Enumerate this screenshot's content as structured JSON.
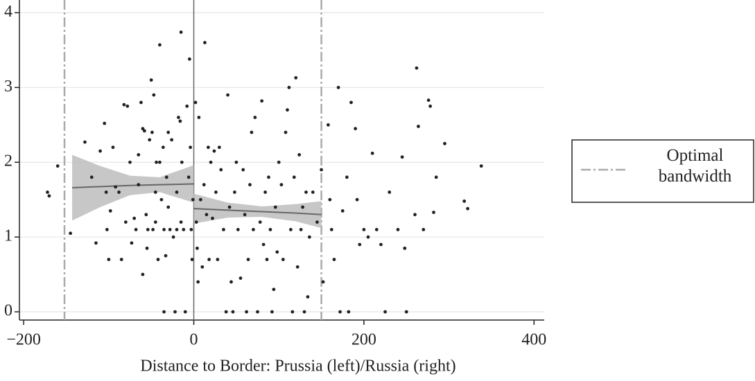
{
  "chart_data": {
    "type": "scatter",
    "x_label": "Distance to Border: Prussia (left)/Russia (right)",
    "xlim": [
      -205,
      412
    ],
    "ylim": [
      -0.11,
      4.17
    ],
    "xticks": [
      {
        "value": -200,
        "label": "−200"
      },
      0,
      200,
      400
    ],
    "yticks": [
      0,
      1,
      2,
      3,
      4
    ],
    "grid": true,
    "color": "#222222",
    "threshold": 0,
    "x": [
      -172,
      -170,
      -160,
      -145,
      -128,
      -120,
      -115,
      -110,
      -105,
      -103,
      -102,
      -100,
      -98,
      -95,
      -92,
      -85,
      -82,
      -78,
      -75,
      -73,
      -70,
      -68,
      -65,
      -62,
      -60,
      -58,
      -56,
      -55,
      -54,
      -52,
      -50,
      -49,
      -47,
      -45,
      -44,
      -42,
      -40,
      -38,
      -36,
      -35,
      -33,
      -32,
      -30,
      -28,
      -26,
      -24,
      -22,
      -20,
      -18,
      -16,
      -15,
      -14,
      -12,
      -10,
      -8,
      -6,
      -5,
      -4,
      -3,
      -2,
      -1,
      -60,
      -80,
      -88,
      -65,
      -45,
      -30,
      -20,
      -35,
      -48,
      -15,
      -40,
      2,
      3,
      4,
      5,
      6,
      8,
      10,
      12,
      13,
      15,
      17,
      18,
      20,
      22,
      24,
      26,
      28,
      30,
      32,
      35,
      38,
      40,
      42,
      44,
      46,
      48,
      50,
      52,
      55,
      58,
      60,
      62,
      64,
      66,
      68,
      70,
      72,
      75,
      78,
      80,
      82,
      84,
      86,
      88,
      90,
      92,
      94,
      96,
      98,
      100,
      103,
      105,
      108,
      110,
      112,
      114,
      116,
      118,
      120,
      122,
      124,
      126,
      128,
      130,
      132,
      134,
      136,
      140,
      145,
      150,
      152,
      158,
      160,
      162,
      165,
      170,
      172,
      175,
      180,
      182,
      185,
      190,
      192,
      195,
      200,
      205,
      210,
      215,
      220,
      225,
      230,
      240,
      245,
      248,
      250,
      260,
      262,
      264,
      270,
      276,
      278,
      282,
      285,
      295,
      318,
      322,
      338
    ],
    "values": [
      1.6,
      1.55,
      1.95,
      1.05,
      2.27,
      1.8,
      0.92,
      2.15,
      2.52,
      1.6,
      1.1,
      0.7,
      1.35,
      2.2,
      1.67,
      0.7,
      2.77,
      2.75,
      2.0,
      0.92,
      1.25,
      1.1,
      2.1,
      2.8,
      2.45,
      2.42,
      1.3,
      0.85,
      1.1,
      2.3,
      3.1,
      2.4,
      2.9,
      1.2,
      2.0,
      0.7,
      3.57,
      1.5,
      2.2,
      1.1,
      0.75,
      1.8,
      2.4,
      1.1,
      2.3,
      1.0,
      0,
      1.1,
      2.6,
      2.55,
      3.74,
      2.0,
      1.1,
      0,
      2.75,
      1.8,
      3.38,
      2.2,
      1.1,
      0.7,
      1.5,
      0.5,
      1.2,
      1.6,
      1.7,
      1.6,
      1.4,
      1.6,
      0,
      1.1,
      1.2,
      2.0,
      2.8,
      1.2,
      0.85,
      0.4,
      2.6,
      1.5,
      0.6,
      1.7,
      3.6,
      1.3,
      2.2,
      0.7,
      2.0,
      1.25,
      2.15,
      1.6,
      0.7,
      2.2,
      1.9,
      1.1,
      0,
      2.9,
      1.4,
      0.4,
      0,
      1.6,
      2.0,
      1.1,
      0.45,
      1.9,
      1.3,
      0,
      0.7,
      1.7,
      2.4,
      1.1,
      2.6,
      0,
      1.2,
      2.82,
      0.9,
      1.6,
      0.7,
      1.8,
      1.1,
      0,
      0.3,
      1.4,
      0.8,
      2.0,
      1.7,
      0.7,
      2.4,
      2.7,
      3.0,
      1.1,
      0,
      1.8,
      3.13,
      0.6,
      2.1,
      1.1,
      1.4,
      0,
      1.6,
      0.2,
      1.0,
      1.6,
      1.2,
      1.9,
      0.4,
      2.5,
      1.5,
      1.1,
      0.7,
      3.0,
      0,
      1.35,
      1.8,
      0,
      2.8,
      2.45,
      1.5,
      0.9,
      1.1,
      1.0,
      2.12,
      1.1,
      0.9,
      0,
      1.6,
      1.1,
      2.07,
      0.85,
      0,
      1.3,
      3.26,
      2.48,
      1.1,
      2.83,
      2.75,
      1.33,
      1.8,
      2.25,
      1.48,
      1.38,
      1.95
    ],
    "fits": [
      {
        "x": [
          -143,
          -110,
          -75,
          -40,
          0
        ],
        "values": [
          1.66,
          1.675,
          1.69,
          1.7,
          1.71
        ],
        "upper": [
          2.1,
          1.95,
          1.82,
          1.8,
          1.96
        ],
        "lower": [
          1.22,
          1.4,
          1.56,
          1.6,
          1.46
        ]
      },
      {
        "x": [
          0,
          40,
          80,
          120,
          150
        ],
        "values": [
          1.38,
          1.36,
          1.34,
          1.32,
          1.3
        ],
        "upper": [
          1.58,
          1.46,
          1.41,
          1.44,
          1.48
        ],
        "lower": [
          1.18,
          1.26,
          1.27,
          1.21,
          1.12
        ]
      }
    ],
    "bandwidth": {
      "name": "Optimal bandwidth",
      "values": [
        -152,
        150
      ],
      "color": "#aaaaaa"
    }
  }
}
